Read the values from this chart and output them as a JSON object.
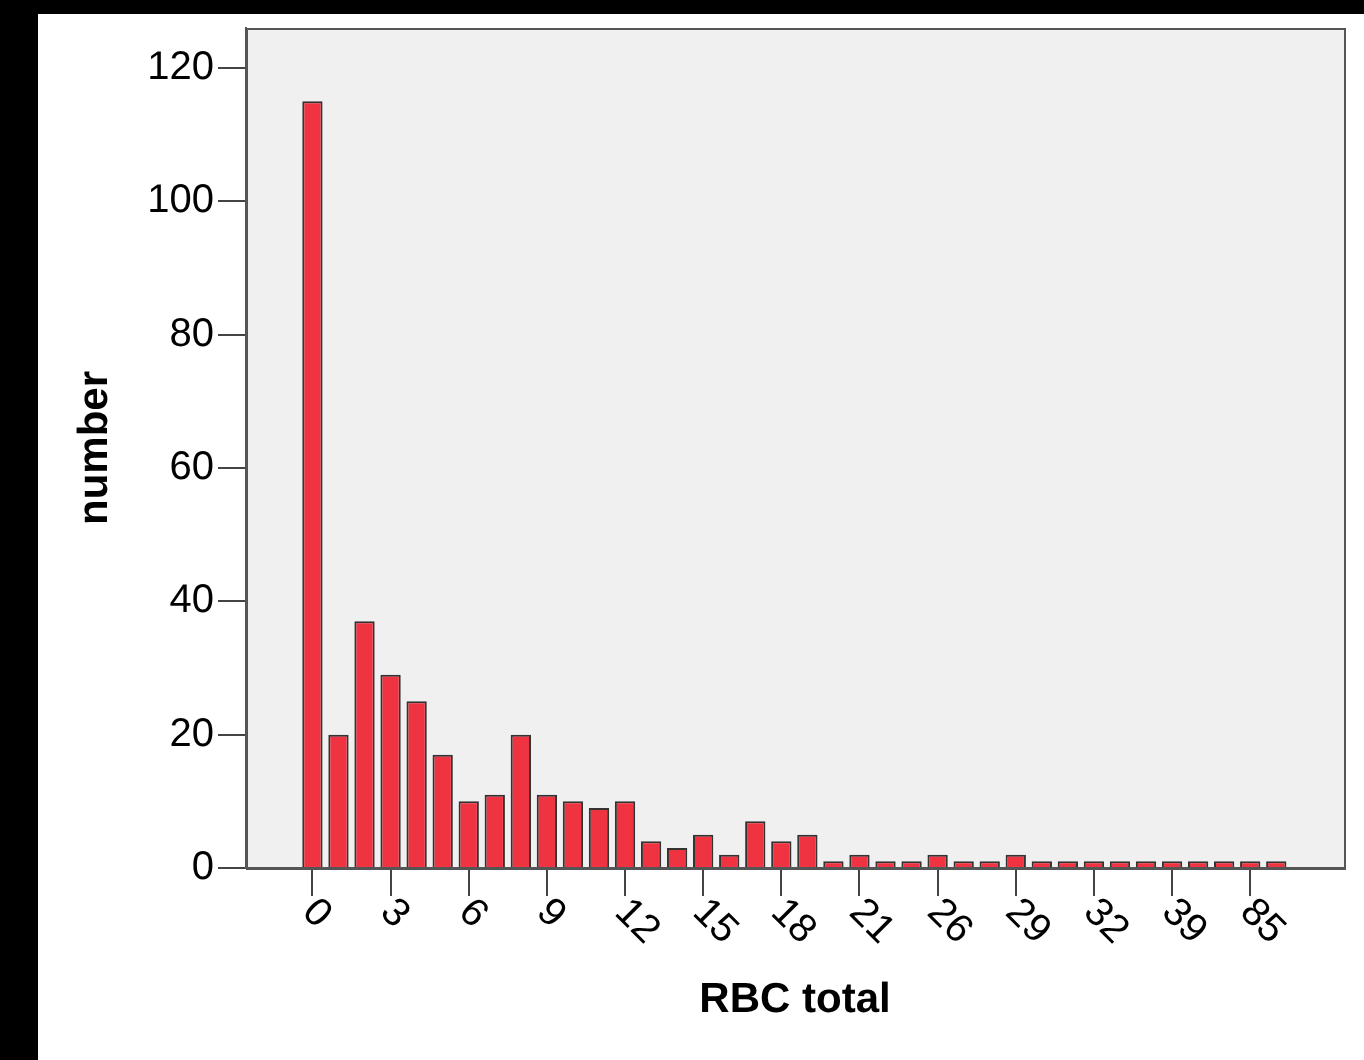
{
  "chart_data": {
    "type": "bar",
    "xlabel": "RBC total",
    "ylabel": "number",
    "categories": [
      "0",
      null,
      null,
      "3",
      null,
      null,
      "6",
      null,
      null,
      "9",
      null,
      null,
      "12",
      null,
      null,
      "15",
      null,
      null,
      "18",
      null,
      null,
      "21",
      null,
      null,
      "26",
      null,
      null,
      "29",
      null,
      null,
      "32",
      null,
      null,
      "39",
      null,
      null,
      "85",
      null
    ],
    "values": [
      115,
      20,
      37,
      29,
      25,
      17,
      10,
      11,
      20,
      11,
      10,
      9,
      10,
      4,
      3,
      5,
      2,
      7,
      4,
      5,
      1,
      2,
      1,
      1,
      2,
      1,
      1,
      2,
      1,
      1,
      1,
      1,
      1,
      1,
      1,
      1,
      1,
      1
    ],
    "color": "#ef3340",
    "ylim": [
      0,
      126
    ],
    "yticks": [
      0,
      20,
      40,
      60,
      80,
      100,
      120
    ]
  }
}
